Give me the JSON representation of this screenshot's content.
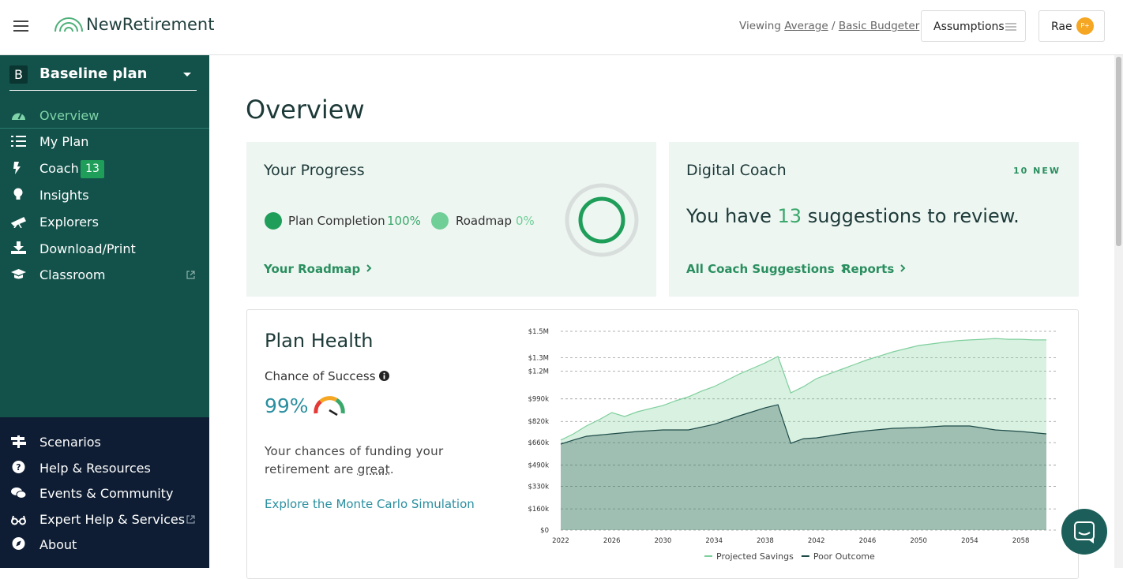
{
  "header": {
    "logo": "NewRetirement",
    "viewing": {
      "prefix": "Viewing",
      "profile": "Average",
      "separator": "/",
      "budget": "Basic Budgeter"
    },
    "assumptions": "Assumptions",
    "user": "Rae",
    "avatar": "P+"
  },
  "sidebar": {
    "plan_badge": "B",
    "plan_name": "Baseline plan",
    "nav": [
      {
        "label": "Overview"
      },
      {
        "label": "My Plan"
      },
      {
        "label": "Coach",
        "badge": "13"
      },
      {
        "label": "Insights"
      },
      {
        "label": "Explorers"
      },
      {
        "label": "Download/Print"
      },
      {
        "label": "Classroom"
      }
    ],
    "bottom_nav": [
      "Scenarios",
      "Help & Resources",
      "Events & Community",
      "Expert Help & Services",
      "About"
    ]
  },
  "main": {
    "title": "Overview",
    "progress": {
      "title": "Your Progress",
      "completion_label": "Plan Completion",
      "completion_value": "100%",
      "roadmap_label": "Roadmap",
      "roadmap_value": "0%",
      "link": "Your Roadmap"
    },
    "coach": {
      "title": "Digital Coach",
      "new": "10 NEW",
      "text_before": "You have",
      "count": "13",
      "text_after": "suggestions to review.",
      "link_suggestions": "All Coach Suggestions",
      "link_reports": "Reports"
    },
    "plan_health": {
      "title": "Plan Health",
      "chance_label": "Chance of Success",
      "chance_value": "99%",
      "desc": "Your chances of funding your retirement are",
      "desc_word": "great",
      "desc_end": ".",
      "link": "Explore the Monte Carlo Simulation"
    }
  },
  "chart_data": {
    "type": "area",
    "x": [
      2022,
      2023,
      2024,
      2025,
      2026,
      2027,
      2028,
      2029,
      2030,
      2031,
      2032,
      2033,
      2034,
      2035,
      2036,
      2037,
      2038,
      2039,
      2040,
      2041,
      2042,
      2043,
      2044,
      2045,
      2046,
      2047,
      2048,
      2049,
      2050,
      2051,
      2052,
      2053,
      2054,
      2055,
      2056,
      2057,
      2058,
      2059,
      2060
    ],
    "series": [
      {
        "name": "Projected Savings",
        "color": "#7fcf9d",
        "values": [
          679000,
          726000,
          786000,
          833000,
          887000,
          857000,
          893000,
          917000,
          940000,
          976000,
          1006000,
          1048000,
          1083000,
          1131000,
          1179000,
          1220000,
          1262000,
          1310000,
          1036000,
          1083000,
          1143000,
          1179000,
          1214000,
          1250000,
          1286000,
          1315000,
          1345000,
          1369000,
          1393000,
          1405000,
          1417000,
          1429000,
          1435000,
          1440000,
          1446000,
          1440000,
          1440000,
          1435000,
          1435000
        ]
      },
      {
        "name": "Poor Outcome",
        "color": "#1e4b48",
        "values": [
          649000,
          680000,
          708000,
          717000,
          726000,
          735000,
          744000,
          750000,
          756000,
          756000,
          756000,
          777000,
          798000,
          830000,
          863000,
          893000,
          923000,
          946000,
          655000,
          690000,
          696000,
          711000,
          726000,
          738000,
          750000,
          759000,
          768000,
          771000,
          774000,
          780000,
          786000,
          786000,
          786000,
          771000,
          756000,
          750000,
          744000,
          735000,
          726000
        ]
      }
    ],
    "xlim": [
      2022,
      2060
    ],
    "xticks": [
      2022,
      2026,
      2030,
      2034,
      2038,
      2042,
      2046,
      2050,
      2054,
      2058
    ],
    "ylim": [
      0,
      1500000
    ],
    "yticks": [
      {
        "value": 0,
        "label": "$0"
      },
      {
        "value": 160000,
        "label": "$160k"
      },
      {
        "value": 330000,
        "label": "$330k"
      },
      {
        "value": 490000,
        "label": "$490k"
      },
      {
        "value": 660000,
        "label": "$660k"
      },
      {
        "value": 820000,
        "label": "$820k"
      },
      {
        "value": 990000,
        "label": "$990k"
      },
      {
        "value": 1200000,
        "label": "$1.2M"
      },
      {
        "value": 1300000,
        "label": "$1.3M"
      },
      {
        "value": 1500000,
        "label": "$1.5M"
      }
    ],
    "grid": true,
    "legend": "bottom"
  }
}
